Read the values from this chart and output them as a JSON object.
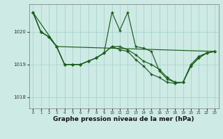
{
  "background_color": "#cdeae5",
  "grid_color": "#aad4ce",
  "line_color": "#1a5c1a",
  "marker_color": "#1a5c1a",
  "xlabel": "Graphe pression niveau de la mer (hPa)",
  "xlabel_fontsize": 6.5,
  "ylim": [
    1017.65,
    1020.85
  ],
  "xlim": [
    -0.5,
    23.5
  ],
  "yticks": [
    1018,
    1019,
    1020
  ],
  "xticks": [
    0,
    1,
    2,
    3,
    4,
    5,
    6,
    7,
    8,
    9,
    10,
    11,
    12,
    13,
    14,
    15,
    16,
    17,
    18,
    19,
    20,
    21,
    22,
    23
  ],
  "line1_x": [
    0,
    1,
    2,
    3,
    4,
    5,
    6,
    7,
    8,
    9,
    10,
    11,
    12,
    13,
    14,
    15,
    16,
    17,
    18,
    19,
    20,
    21,
    22,
    23
  ],
  "line1_y": [
    1020.6,
    1020.0,
    1019.85,
    1019.55,
    1019.0,
    1019.0,
    1019.0,
    1019.1,
    1019.2,
    1019.35,
    1020.6,
    1020.05,
    1020.6,
    1019.55,
    1019.5,
    1019.4,
    1018.8,
    1018.55,
    1018.45,
    1018.45,
    1019.0,
    1019.25,
    1019.35,
    1019.4
  ],
  "line2_x": [
    0,
    1,
    2,
    3,
    4,
    5,
    6,
    7,
    8,
    9,
    10,
    11,
    12,
    13,
    14,
    15,
    16,
    17,
    18,
    19,
    20,
    21,
    22,
    23
  ],
  "line2_y": [
    1020.6,
    1020.0,
    1019.85,
    1019.55,
    1019.0,
    1019.0,
    1019.0,
    1019.1,
    1019.2,
    1019.35,
    1019.55,
    1019.55,
    1019.45,
    1019.3,
    1019.1,
    1019.0,
    1018.85,
    1018.6,
    1018.45,
    1018.45,
    1018.95,
    1019.2,
    1019.35,
    1019.4
  ],
  "line3_x": [
    0,
    1,
    2,
    3,
    4,
    5,
    6,
    7,
    8,
    9,
    10,
    11,
    12,
    13,
    14,
    15,
    16,
    17,
    18,
    19,
    20,
    21,
    22,
    23
  ],
  "line3_y": [
    1020.6,
    1020.0,
    1019.85,
    1019.55,
    1019.0,
    1019.0,
    1019.0,
    1019.1,
    1019.2,
    1019.35,
    1019.55,
    1019.45,
    1019.4,
    1019.15,
    1018.95,
    1018.7,
    1018.6,
    1018.45,
    1018.42,
    1018.45,
    1018.95,
    1019.2,
    1019.35,
    1019.4
  ],
  "line4_x": [
    0,
    3,
    23
  ],
  "line4_y": [
    1020.6,
    1019.55,
    1019.4
  ]
}
